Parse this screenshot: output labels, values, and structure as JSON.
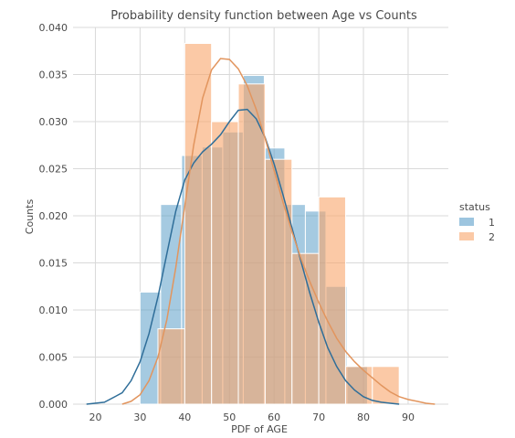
{
  "chart_data": {
    "type": "bar",
    "title": "Probability density function between Age vs Counts",
    "xlabel": "PDF of AGE",
    "ylabel": "Counts",
    "xlim": [
      15,
      99
    ],
    "ylim": [
      0,
      0.04
    ],
    "xticks": [
      20,
      30,
      40,
      50,
      60,
      70,
      80,
      90
    ],
    "xtick_labels": [
      "20",
      "30",
      "40",
      "50",
      "60",
      "70",
      "80",
      "90"
    ],
    "yticks": [
      0,
      0.005,
      0.01,
      0.015,
      0.02,
      0.025,
      0.03,
      0.035,
      0.04
    ],
    "ytick_labels": [
      "0.000",
      "0.005",
      "0.010",
      "0.015",
      "0.020",
      "0.025",
      "0.030",
      "0.035",
      "0.040"
    ],
    "grid": true,
    "legend_title": "status",
    "legend_position": "right",
    "series": [
      {
        "name": "1",
        "color": "#5b9ec9",
        "kde_color": "#2f6e99",
        "bins": [
          {
            "x0": 30.0,
            "x1": 34.6,
            "value": 0.0119
          },
          {
            "x0": 34.6,
            "x1": 39.3,
            "value": 0.0212
          },
          {
            "x0": 39.3,
            "x1": 43.9,
            "value": 0.0264
          },
          {
            "x0": 43.9,
            "x1": 48.5,
            "value": 0.0273
          },
          {
            "x0": 48.5,
            "x1": 53.1,
            "value": 0.0289
          },
          {
            "x0": 53.1,
            "x1": 57.8,
            "value": 0.0349
          },
          {
            "x0": 57.8,
            "x1": 62.4,
            "value": 0.0272
          },
          {
            "x0": 62.4,
            "x1": 67.0,
            "value": 0.0212
          },
          {
            "x0": 67.0,
            "x1": 71.6,
            "value": 0.0205
          },
          {
            "x0": 71.6,
            "x1": 76.3,
            "value": 0.0125
          },
          {
            "x0": 76.3,
            "x1": 80.9,
            "value": 0.004
          }
        ],
        "kde": {
          "x": [
            18,
            22,
            26,
            28,
            30,
            32,
            34,
            36,
            38,
            40,
            42,
            44,
            46,
            48,
            50,
            52,
            54,
            56,
            58,
            60,
            62,
            64,
            66,
            68,
            70,
            72,
            74,
            76,
            78,
            80,
            82,
            84,
            86,
            88
          ],
          "y": [
            0,
            0.0002,
            0.0012,
            0.0025,
            0.0045,
            0.0075,
            0.0114,
            0.016,
            0.0205,
            0.0238,
            0.0256,
            0.0268,
            0.0276,
            0.0286,
            0.03,
            0.0312,
            0.0313,
            0.0303,
            0.0283,
            0.0255,
            0.0222,
            0.0187,
            0.0152,
            0.0118,
            0.0087,
            0.006,
            0.004,
            0.0025,
            0.0015,
            0.0008,
            0.0004,
            0.0002,
            0.0001,
            0
          ]
        }
      },
      {
        "name": "2",
        "color": "#f9a56a",
        "kde_color": "#e2955e",
        "bins": [
          {
            "x0": 34.0,
            "x1": 40.0,
            "value": 0.008
          },
          {
            "x0": 40.0,
            "x1": 46.0,
            "value": 0.0383
          },
          {
            "x0": 46.0,
            "x1": 52.0,
            "value": 0.03
          },
          {
            "x0": 52.0,
            "x1": 58.0,
            "value": 0.034
          },
          {
            "x0": 58.0,
            "x1": 64.0,
            "value": 0.026
          },
          {
            "x0": 64.0,
            "x1": 70.0,
            "value": 0.016
          },
          {
            "x0": 70.0,
            "x1": 76.0,
            "value": 0.022
          },
          {
            "x0": 76.0,
            "x1": 82.0,
            "value": 0.004
          },
          {
            "x0": 82.0,
            "x1": 88.0,
            "value": 0.004
          }
        ],
        "kde": {
          "x": [
            26,
            28,
            30,
            32,
            34,
            36,
            38,
            40,
            42,
            44,
            46,
            48,
            50,
            52,
            54,
            56,
            58,
            60,
            62,
            64,
            66,
            68,
            70,
            72,
            74,
            76,
            78,
            80,
            82,
            84,
            86,
            88,
            90,
            92,
            94,
            96
          ],
          "y": [
            0,
            0.0003,
            0.001,
            0.0025,
            0.005,
            0.009,
            0.0145,
            0.021,
            0.0275,
            0.0325,
            0.0355,
            0.0367,
            0.0366,
            0.0356,
            0.0338,
            0.0313,
            0.0282,
            0.0248,
            0.0214,
            0.0183,
            0.0155,
            0.013,
            0.0108,
            0.0088,
            0.007,
            0.0056,
            0.0045,
            0.0036,
            0.0028,
            0.002,
            0.0013,
            0.0008,
            0.0005,
            0.0003,
            0.0001,
            0
          ]
        }
      }
    ]
  }
}
